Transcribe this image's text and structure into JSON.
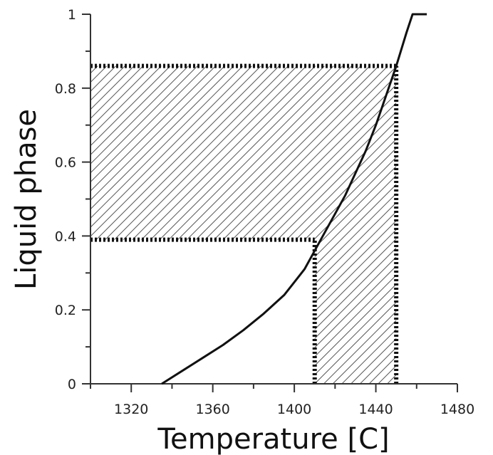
{
  "chart_data": {
    "type": "line",
    "xlabel": "Temperature [C]",
    "ylabel": "Liquid phase",
    "xlim": [
      1300,
      1480
    ],
    "ylim": [
      0,
      1
    ],
    "x_ticks": [
      1320,
      1360,
      1400,
      1440,
      1480
    ],
    "y_ticks": [
      0,
      0.2,
      0.4,
      0.6,
      0.8,
      1
    ],
    "x_tick_labels": [
      "1320",
      "1360",
      "1400",
      "1440",
      "1480"
    ],
    "y_tick_labels": [
      "0",
      "0.2",
      "0.4",
      "0.6",
      "0.8",
      "1"
    ],
    "grid": false,
    "series": [
      {
        "x": [
          1335,
          1345,
          1355,
          1365,
          1375,
          1385,
          1395,
          1400,
          1405,
          1410,
          1415,
          1420,
          1425,
          1430,
          1435,
          1440,
          1445,
          1450,
          1455,
          1458,
          1465
        ],
        "y": [
          0,
          0.035,
          0.07,
          0.105,
          0.145,
          0.19,
          0.24,
          0.275,
          0.31,
          0.36,
          0.41,
          0.46,
          0.51,
          0.57,
          0.63,
          0.7,
          0.78,
          0.86,
          0.95,
          1.0,
          1.0
        ]
      }
    ],
    "annotations": {
      "hatched_horizontal_band": {
        "x_from": 1300,
        "x_to": 1450,
        "y_from": 0.39,
        "y_to": 0.86
      },
      "hatched_vertical_band": {
        "x_from": 1410,
        "x_to": 1450,
        "y_from": 0,
        "y_to": 0.39
      },
      "dotted_lines": [
        {
          "from": [
            1300,
            0.86
          ],
          "to": [
            1450,
            0.86
          ]
        },
        {
          "from": [
            1300,
            0.39
          ],
          "to": [
            1410,
            0.39
          ]
        },
        {
          "from": [
            1410,
            0
          ],
          "to": [
            1410,
            0.39
          ]
        },
        {
          "from": [
            1450,
            0
          ],
          "to": [
            1450,
            0.86
          ]
        }
      ]
    },
    "colors": {
      "line": "#111111",
      "hatch": "#555555",
      "axis": "#333333"
    }
  }
}
